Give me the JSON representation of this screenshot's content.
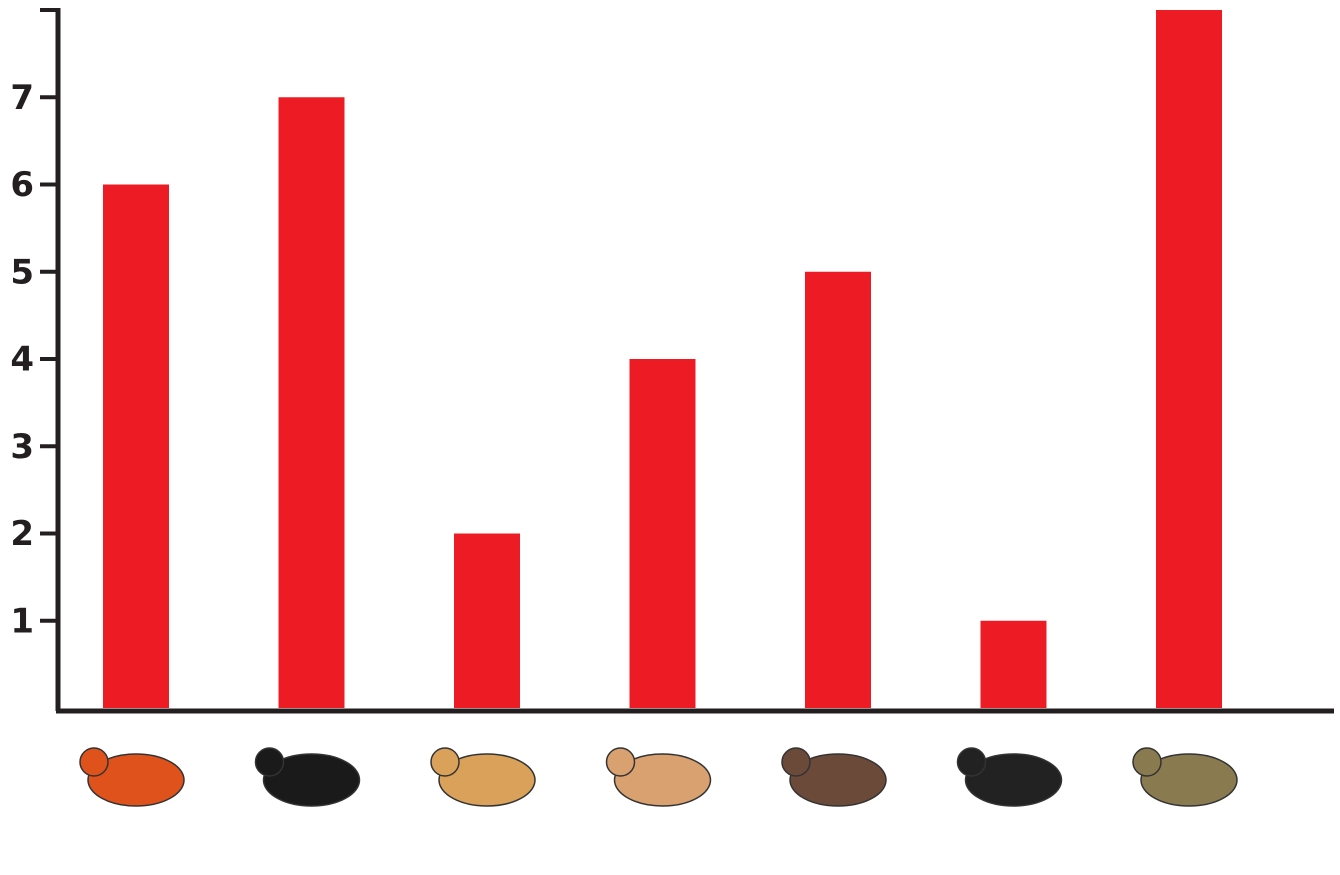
{
  "chart_data": {
    "type": "bar",
    "categories": [
      null,
      null,
      null,
      null,
      null,
      null,
      null
    ],
    "values": [
      6,
      7,
      2,
      4,
      5,
      1,
      8
    ],
    "color": "#ed1c24",
    "ylim": [
      0,
      8
    ],
    "yticks": [
      1,
      2,
      3,
      4,
      5,
      6,
      7
    ]
  }
}
